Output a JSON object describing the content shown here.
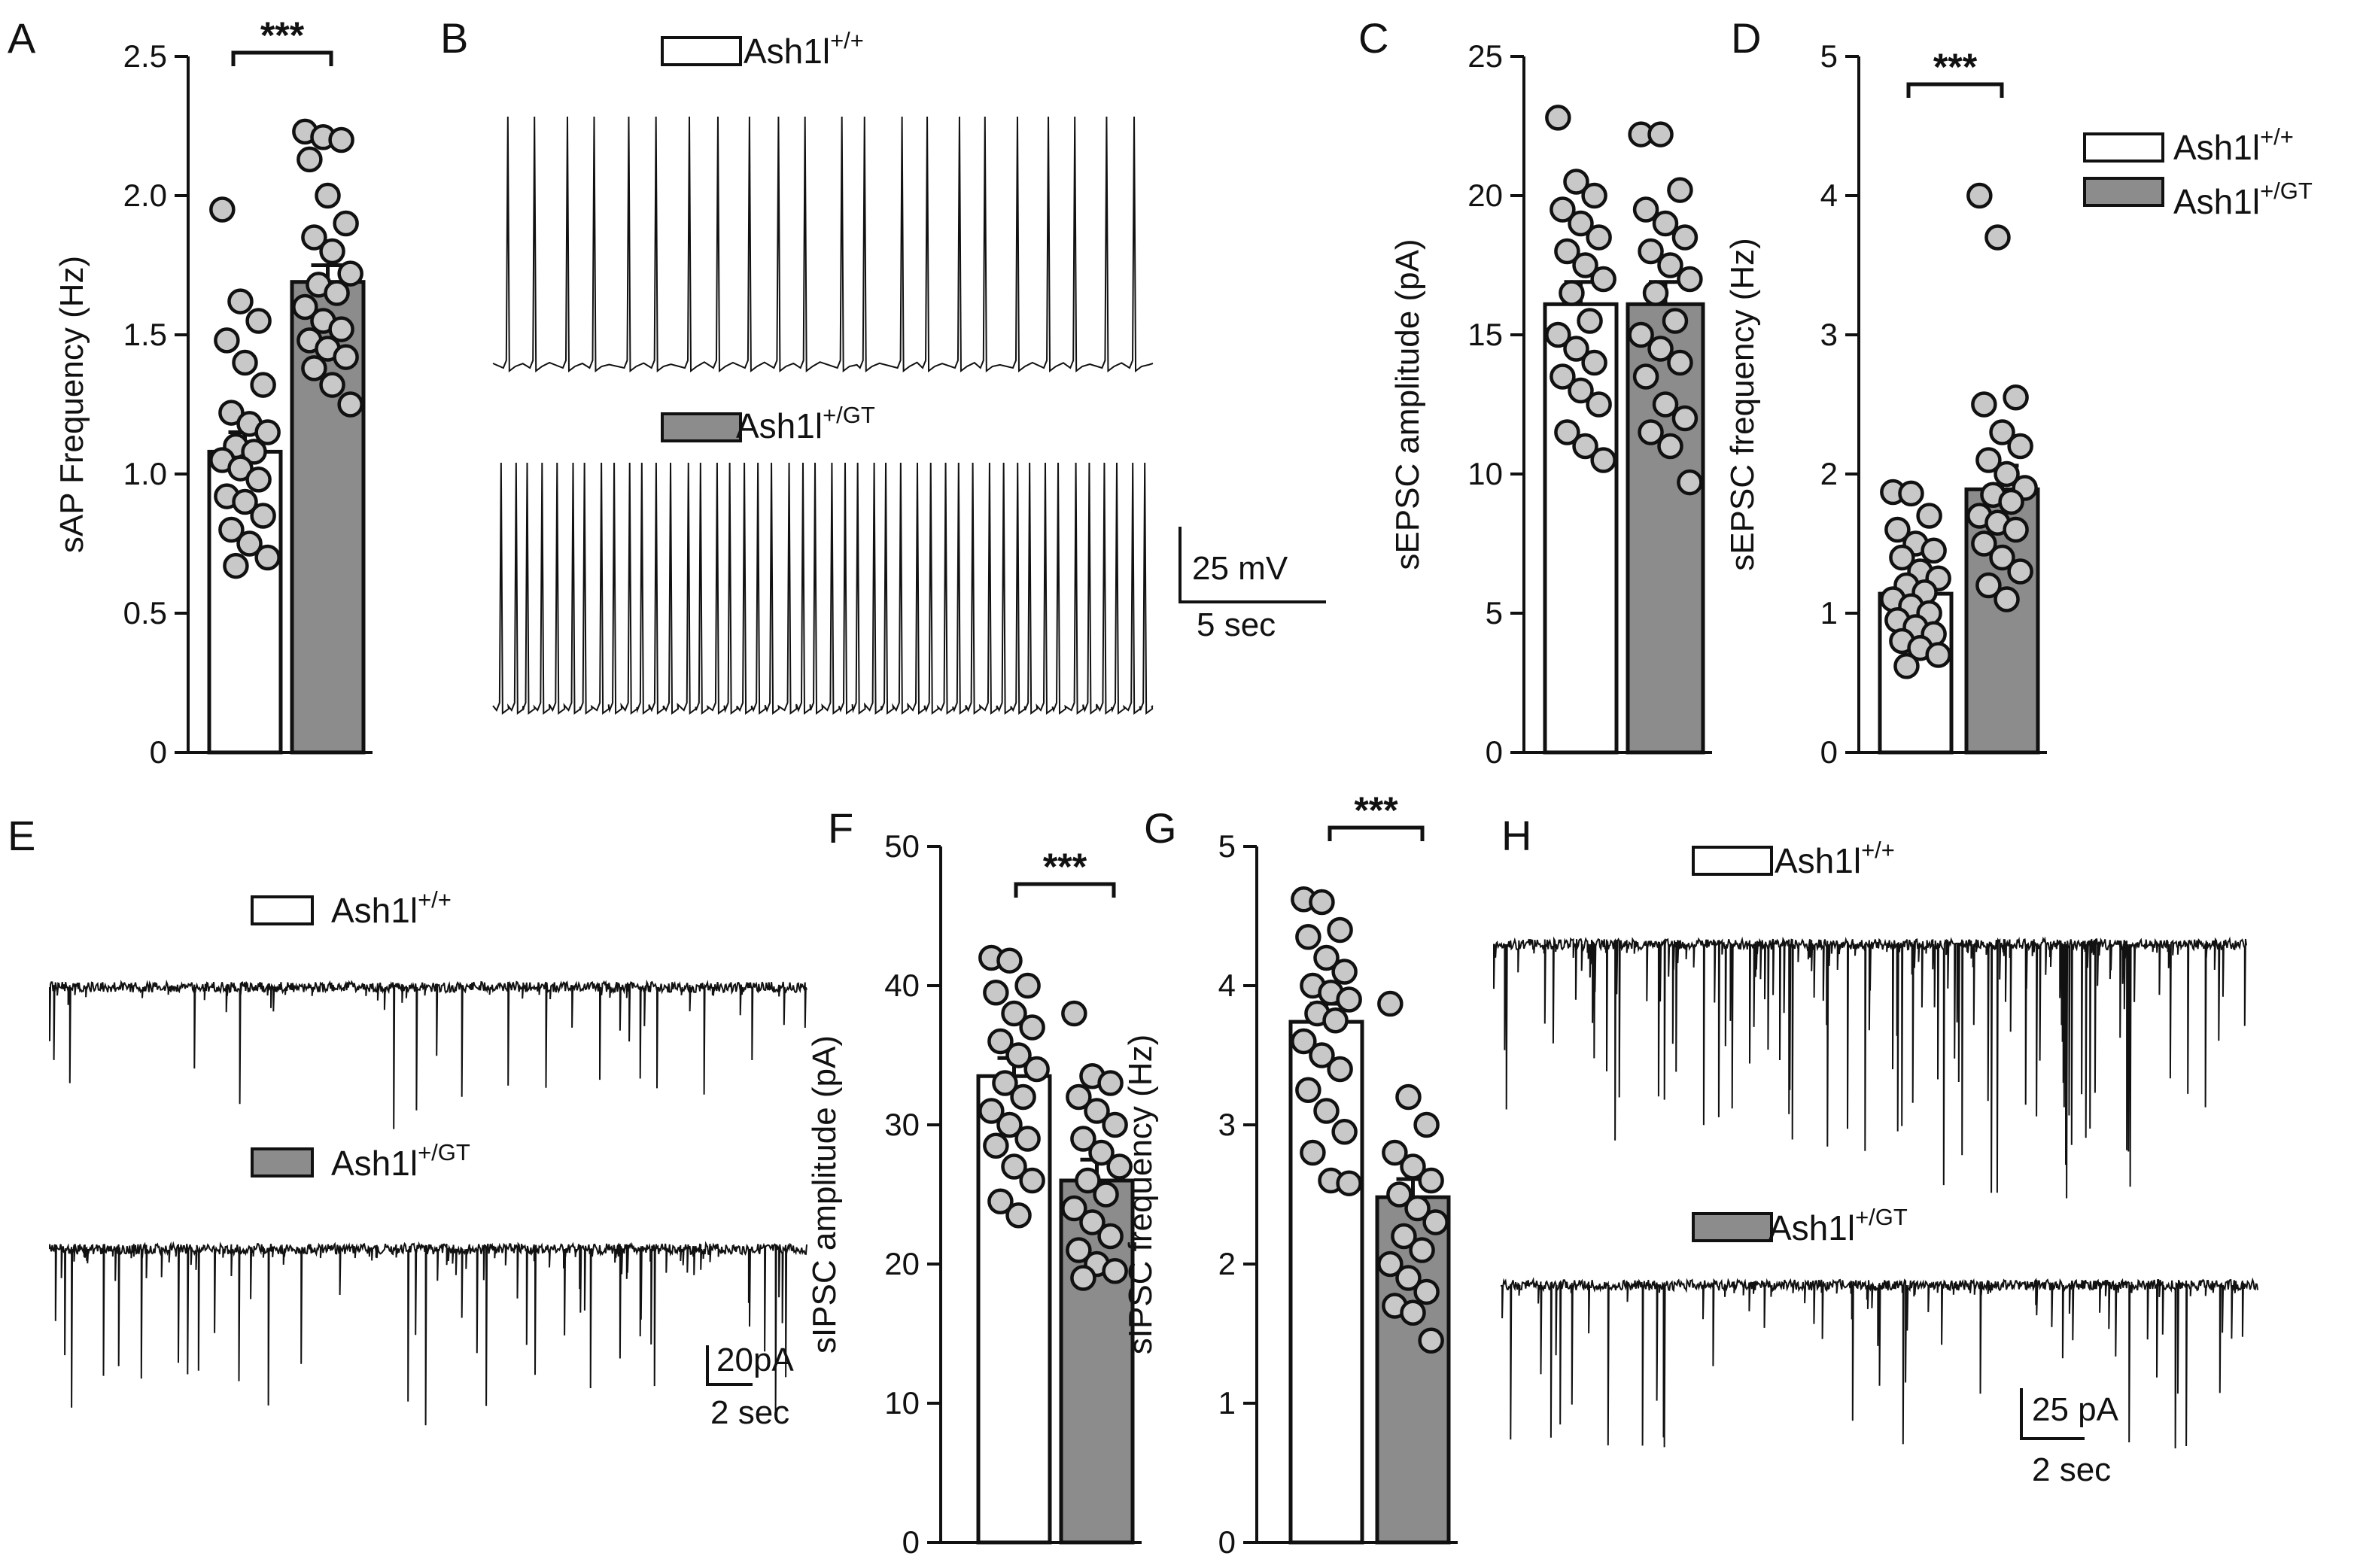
{
  "colors": {
    "wt": "#ffffff",
    "mut": "#8c8c8c",
    "dot": "#c8c8c8",
    "ink": "#111111"
  },
  "legend": {
    "wt": {
      "base": "Ash1l",
      "sup": "+/+"
    },
    "mut": {
      "base": "Ash1l",
      "sup": "+/GT"
    }
  },
  "chart_data": [
    {
      "id": "A",
      "type": "bar",
      "panel_label": "A",
      "ylabel": "sAP Frequency (Hz)",
      "ylim": [
        0,
        2.5
      ],
      "yticks": [
        "0",
        "0.5",
        "1.0",
        "1.5",
        "2.0",
        "2.5"
      ],
      "tickvals": [
        0,
        0.5,
        1.0,
        1.5,
        2.0,
        2.5
      ],
      "significance": "***",
      "series": [
        {
          "name": "Ash1l+/+",
          "mean": 1.08,
          "sem": 0.07,
          "points": [
            1.95,
            1.62,
            1.55,
            1.48,
            1.4,
            1.32,
            1.22,
            1.18,
            1.15,
            1.1,
            1.08,
            1.05,
            1.02,
            0.98,
            0.92,
            0.9,
            0.85,
            0.8,
            0.75,
            0.7,
            0.67
          ]
        },
        {
          "name": "Ash1l+/GT",
          "mean": 1.69,
          "sem": 0.06,
          "points": [
            2.23,
            2.21,
            2.2,
            2.13,
            2.0,
            1.9,
            1.85,
            1.8,
            1.72,
            1.68,
            1.65,
            1.6,
            1.55,
            1.52,
            1.48,
            1.45,
            1.42,
            1.38,
            1.32,
            1.25
          ]
        }
      ]
    },
    {
      "id": "C",
      "type": "bar",
      "panel_label": "C",
      "ylabel": "sEPSC amplitude (pA)",
      "ylim": [
        0,
        25
      ],
      "yticks": [
        "0",
        "5",
        "10",
        "15",
        "20",
        "25"
      ],
      "tickvals": [
        0,
        5,
        10,
        15,
        20,
        25
      ],
      "significance": "",
      "series": [
        {
          "name": "Ash1l+/+",
          "mean": 16.1,
          "sem": 0.8,
          "points": [
            22.8,
            20.5,
            20.0,
            19.5,
            19.0,
            18.5,
            18.0,
            17.5,
            17.0,
            16.5,
            15.5,
            15.0,
            14.5,
            14.0,
            13.5,
            13.0,
            12.5,
            11.5,
            11.0,
            10.5
          ]
        },
        {
          "name": "Ash1l+/GT",
          "mean": 16.1,
          "sem": 0.8,
          "points": [
            22.2,
            22.2,
            20.2,
            19.5,
            19.0,
            18.5,
            18.0,
            17.5,
            17.0,
            16.5,
            15.5,
            15.0,
            14.5,
            14.0,
            13.5,
            12.5,
            12.0,
            11.5,
            11.0,
            9.7
          ]
        }
      ]
    },
    {
      "id": "D",
      "type": "bar",
      "panel_label": "D",
      "ylabel": "sEPSC frequency (Hz)",
      "ylim": [
        0,
        5
      ],
      "yticks": [
        "0",
        "1",
        "2",
        "3",
        "4",
        "5"
      ],
      "tickvals": [
        0,
        1,
        2,
        3,
        4,
        5
      ],
      "significance": "***",
      "series": [
        {
          "name": "Ash1l+/+",
          "mean": 1.14,
          "sem": 0.08,
          "points": [
            1.87,
            1.86,
            1.7,
            1.6,
            1.5,
            1.45,
            1.4,
            1.3,
            1.25,
            1.2,
            1.15,
            1.1,
            1.05,
            1.0,
            0.95,
            0.9,
            0.85,
            0.8,
            0.75,
            0.7,
            0.62
          ]
        },
        {
          "name": "Ash1l+/GT",
          "mean": 1.89,
          "sem": 0.17,
          "points": [
            4.0,
            3.7,
            2.55,
            2.5,
            2.3,
            2.2,
            2.1,
            2.0,
            1.9,
            1.85,
            1.8,
            1.7,
            1.65,
            1.6,
            1.5,
            1.4,
            1.3,
            1.2,
            1.1
          ]
        }
      ]
    },
    {
      "id": "F",
      "type": "bar",
      "panel_label": "F",
      "ylabel": "sIPSC amplitude (pA)",
      "ylim": [
        0,
        50
      ],
      "yticks": [
        "0",
        "10",
        "20",
        "30",
        "40",
        "50"
      ],
      "tickvals": [
        0,
        10,
        20,
        30,
        40,
        50
      ],
      "significance": "***",
      "series": [
        {
          "name": "Ash1l+/+",
          "mean": 33.5,
          "sem": 1.3,
          "points": [
            42.0,
            41.8,
            40.0,
            39.5,
            38.0,
            37.0,
            36.0,
            35.0,
            34.0,
            33.0,
            32.0,
            31.0,
            30.0,
            29.0,
            28.5,
            27.0,
            26.0,
            24.5,
            23.5
          ]
        },
        {
          "name": "Ash1l+/GT",
          "mean": 26.0,
          "sem": 1.5,
          "points": [
            38.0,
            33.5,
            33.0,
            32.0,
            31.0,
            30.0,
            29.0,
            28.0,
            27.0,
            26.0,
            25.0,
            24.0,
            23.0,
            22.0,
            21.0,
            20.0,
            19.5,
            19.0
          ]
        }
      ]
    },
    {
      "id": "G",
      "type": "bar",
      "panel_label": "G",
      "ylabel": "sIPSC frequency (Hz)",
      "ylim": [
        0,
        5
      ],
      "yticks": [
        "0",
        "1",
        "2",
        "3",
        "4",
        "5"
      ],
      "tickvals": [
        0,
        1,
        2,
        3,
        4,
        5
      ],
      "significance": "***",
      "series": [
        {
          "name": "Ash1l+/+",
          "mean": 3.74,
          "sem": 0.13,
          "points": [
            4.62,
            4.6,
            4.4,
            4.35,
            4.2,
            4.1,
            4.0,
            3.95,
            3.9,
            3.8,
            3.75,
            3.6,
            3.5,
            3.4,
            3.25,
            3.1,
            2.95,
            2.8,
            2.6,
            2.58
          ]
        },
        {
          "name": "Ash1l+/GT",
          "mean": 2.48,
          "sem": 0.13,
          "points": [
            3.87,
            3.2,
            3.0,
            2.8,
            2.7,
            2.6,
            2.5,
            2.4,
            2.3,
            2.2,
            2.1,
            2.0,
            1.9,
            1.8,
            1.7,
            1.65,
            1.45
          ]
        }
      ]
    }
  ],
  "traces": {
    "B": {
      "panel_label": "B",
      "kind": "spikes",
      "scale_v": "25 mV",
      "scale_t": "5 sec",
      "wt_events": 22,
      "mut_events": 46
    },
    "E": {
      "panel_label": "E",
      "kind": "downward",
      "scale_v": "20pA",
      "scale_t": "2 sec",
      "wt_events": 60,
      "mut_events": 110
    },
    "H": {
      "panel_label": "H",
      "kind": "downward",
      "scale_v": "25 pA",
      "scale_t": "2 sec",
      "wt_events": 190,
      "mut_events": 90
    }
  }
}
